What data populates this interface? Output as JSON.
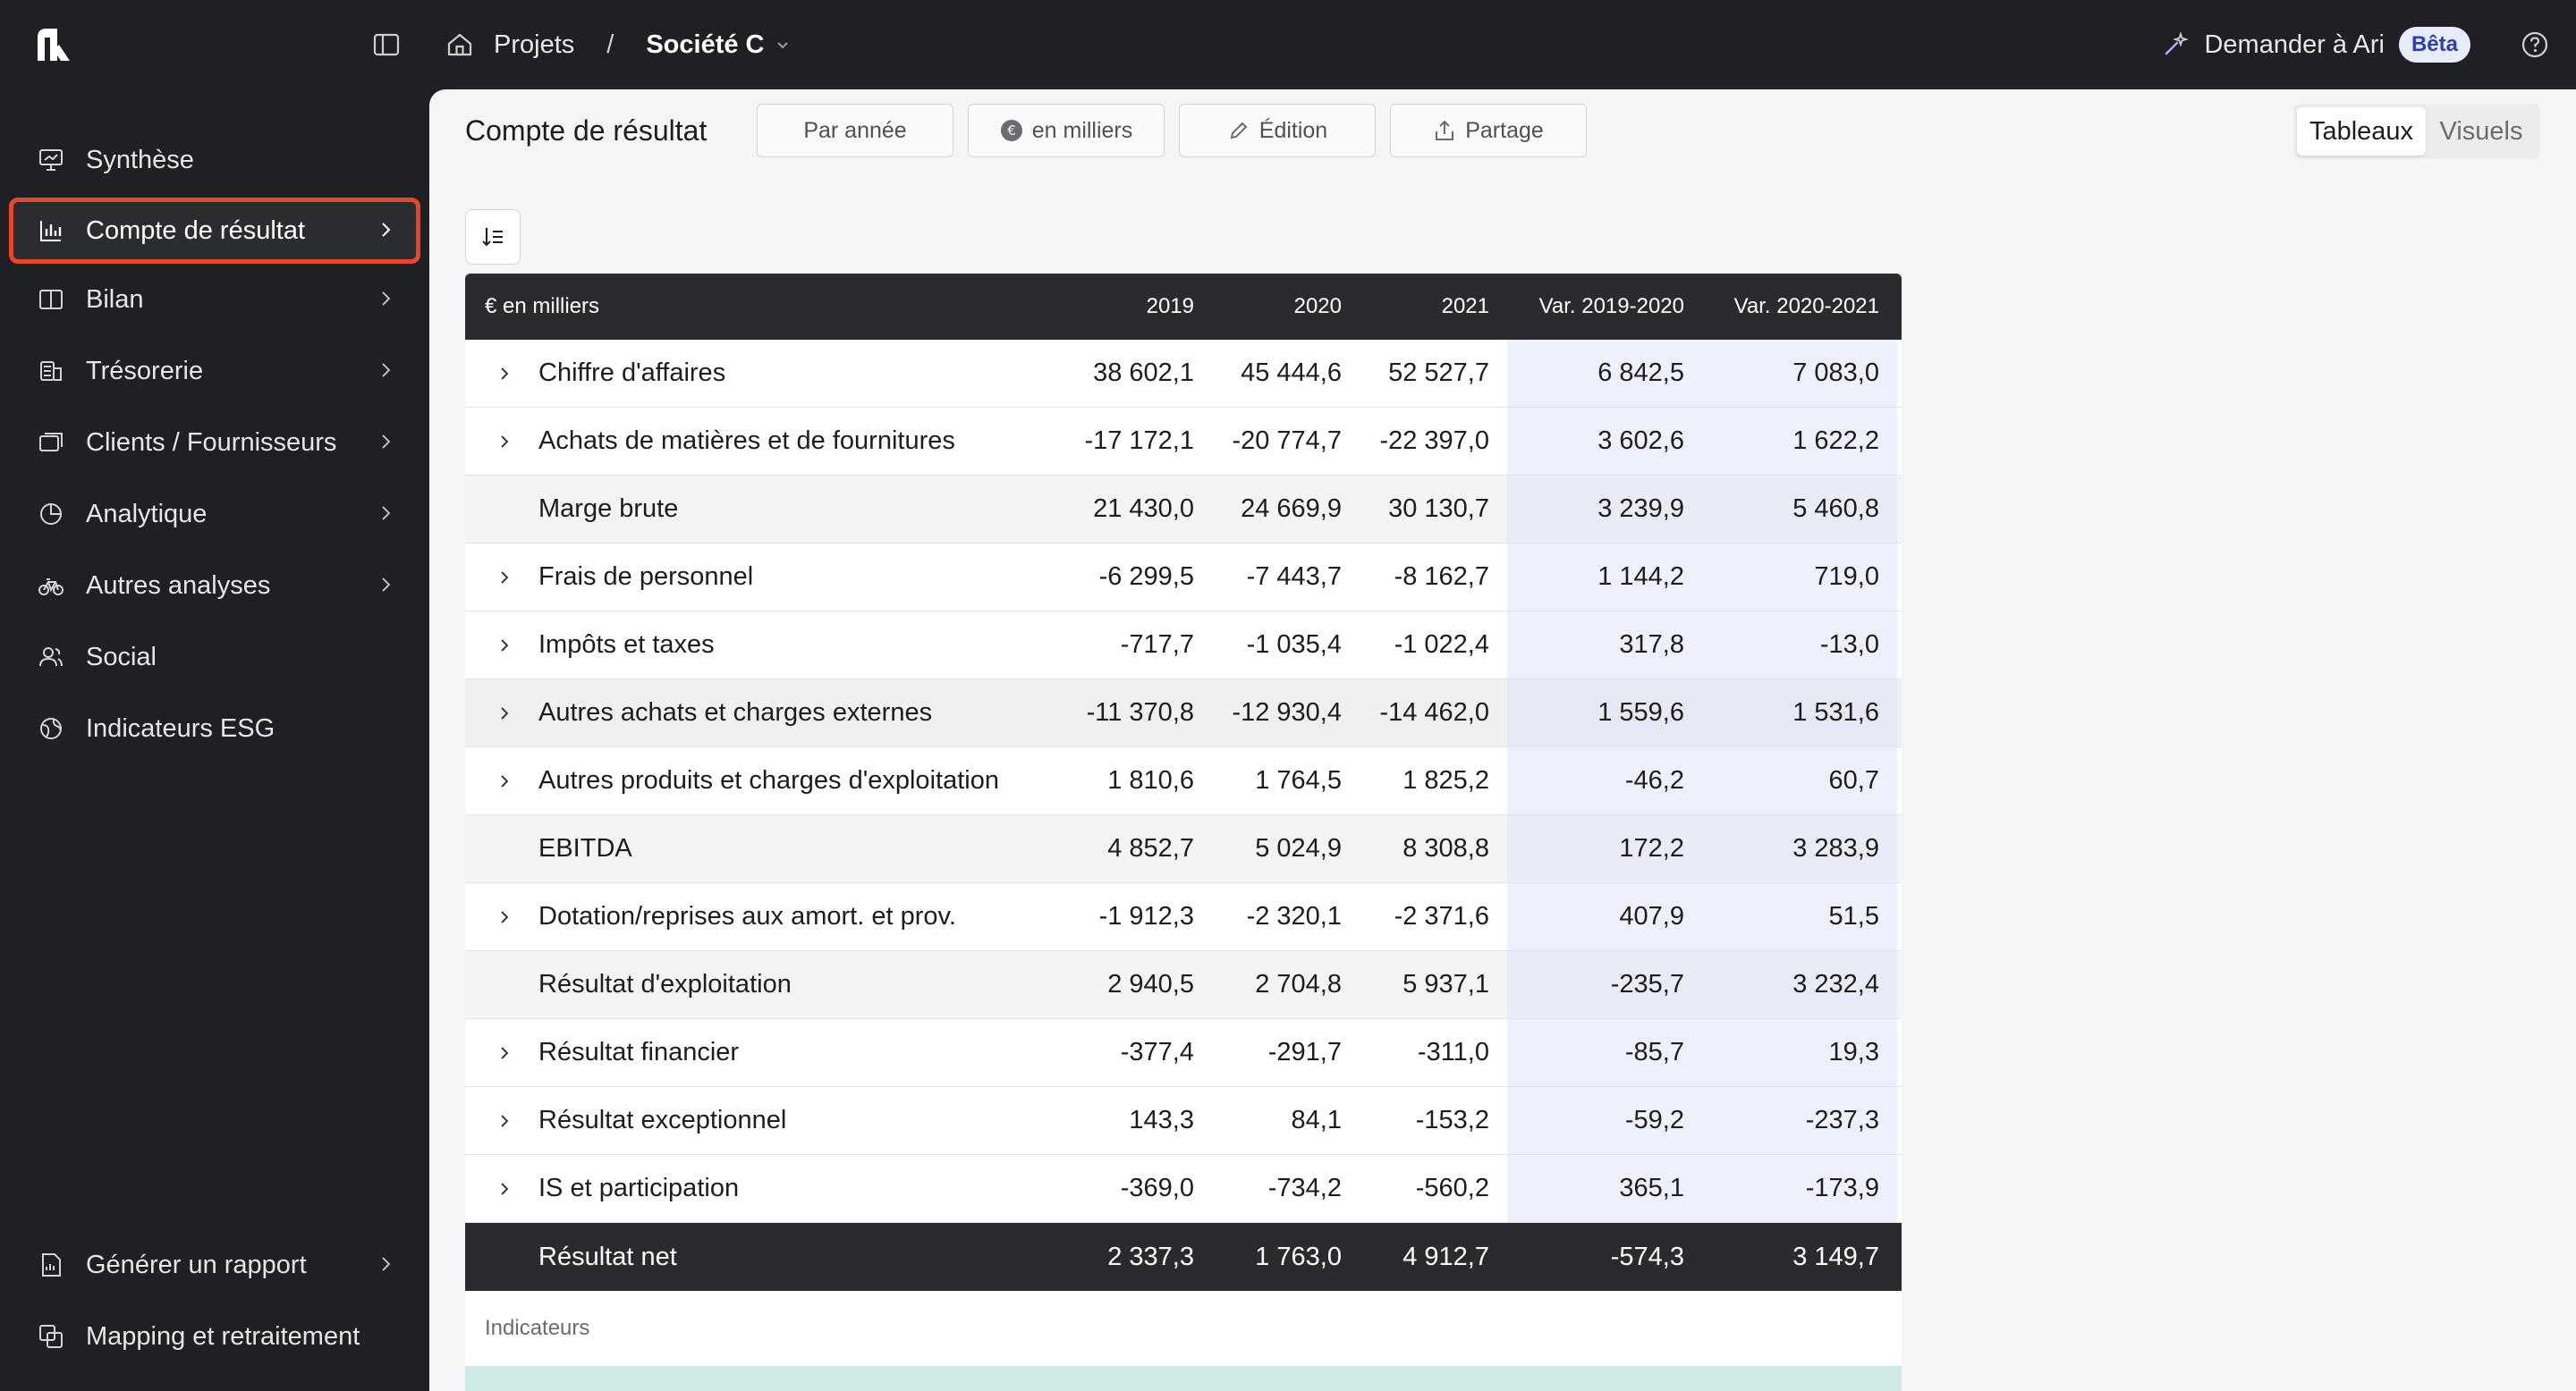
{
  "breadcrumb": {
    "home": "Projets",
    "separator": "/",
    "current": "Société C"
  },
  "ari": {
    "label": "Demander à Ari",
    "badge": "Bêta"
  },
  "sidebar": {
    "items": [
      {
        "label": "Synthèse",
        "icon": "presentation-icon"
      },
      {
        "label": "Compte de résultat",
        "icon": "bar-chart-icon",
        "active": true
      },
      {
        "label": "Bilan",
        "icon": "book-icon"
      },
      {
        "label": "Trésorerie",
        "icon": "coins-icon"
      },
      {
        "label": "Clients / Fournisseurs",
        "icon": "cards-icon"
      },
      {
        "label": "Analytique",
        "icon": "pie-chart-icon"
      },
      {
        "label": "Autres analyses",
        "icon": "bicycle-icon"
      },
      {
        "label": "Social",
        "icon": "users-icon"
      },
      {
        "label": "Indicateurs ESG",
        "icon": "globe-icon"
      }
    ],
    "bottom": [
      {
        "label": "Générer un rapport",
        "icon": "report-icon"
      },
      {
        "label": "Mapping et retraitement",
        "icon": "mapping-icon"
      }
    ]
  },
  "toolbar": {
    "title": "Compte de résultat",
    "period": "Par année",
    "unit": "en milliers",
    "edit": "Édition",
    "share": "Partage",
    "view_tables": "Tableaux",
    "view_visuals": "Visuels"
  },
  "table": {
    "headers": [
      "€ en milliers",
      "2019",
      "2020",
      "2021",
      "Var. 2019-2020",
      "Var. 2020-2021"
    ],
    "rows": [
      {
        "label": "Chiffre d'affaires",
        "v": [
          "38 602,1",
          "45 444,6",
          "52 527,7",
          "6 842,5",
          "7 083,0"
        ]
      },
      {
        "label": "Achats de matières et de fournitures",
        "v": [
          "-17 172,1",
          "-20 774,7",
          "-22 397,0",
          "3 602,6",
          "1 622,2"
        ]
      },
      {
        "label": "Marge brute",
        "v": [
          "21 430,0",
          "24 669,9",
          "30 130,7",
          "3 239,9",
          "5 460,8"
        ]
      },
      {
        "label": "Frais de personnel",
        "v": [
          "-6 299,5",
          "-7 443,7",
          "-8 162,7",
          "1 144,2",
          "719,0"
        ]
      },
      {
        "label": "Impôts et taxes",
        "v": [
          "-717,7",
          "-1 035,4",
          "-1 022,4",
          "317,8",
          "-13,0"
        ]
      },
      {
        "label": "Autres achats et charges externes",
        "v": [
          "-11 370,8",
          "-12 930,4",
          "-14 462,0",
          "1 559,6",
          "1 531,6"
        ]
      },
      {
        "label": "Autres produits et charges d'exploitation",
        "v": [
          "1 810,6",
          "1 764,5",
          "1 825,2",
          "-46,2",
          "60,7"
        ]
      },
      {
        "label": "EBITDA",
        "v": [
          "4 852,7",
          "5 024,9",
          "8 308,8",
          "172,2",
          "3 283,9"
        ]
      },
      {
        "label": "Dotation/reprises aux amort. et prov.",
        "v": [
          "-1 912,3",
          "-2 320,1",
          "-2 371,6",
          "407,9",
          "51,5"
        ]
      },
      {
        "label": "Résultat d'exploitation",
        "v": [
          "2 940,5",
          "2 704,8",
          "5 937,1",
          "-235,7",
          "3 232,4"
        ]
      },
      {
        "label": "Résultat financier",
        "v": [
          "-377,4",
          "-291,7",
          "-311,0",
          "-85,7",
          "19,3"
        ]
      },
      {
        "label": "Résultat exceptionnel",
        "v": [
          "143,3",
          "84,1",
          "-153,2",
          "-59,2",
          "-237,3"
        ]
      },
      {
        "label": "IS et participation",
        "v": [
          "-369,0",
          "-734,2",
          "-560,2",
          "365,1",
          "-173,9"
        ]
      },
      {
        "label": "Résultat net",
        "v": [
          "2 337,3",
          "1 763,0",
          "4 912,7",
          "-574,3",
          "3 149,7"
        ]
      }
    ],
    "indicators_label": "Indicateurs"
  }
}
